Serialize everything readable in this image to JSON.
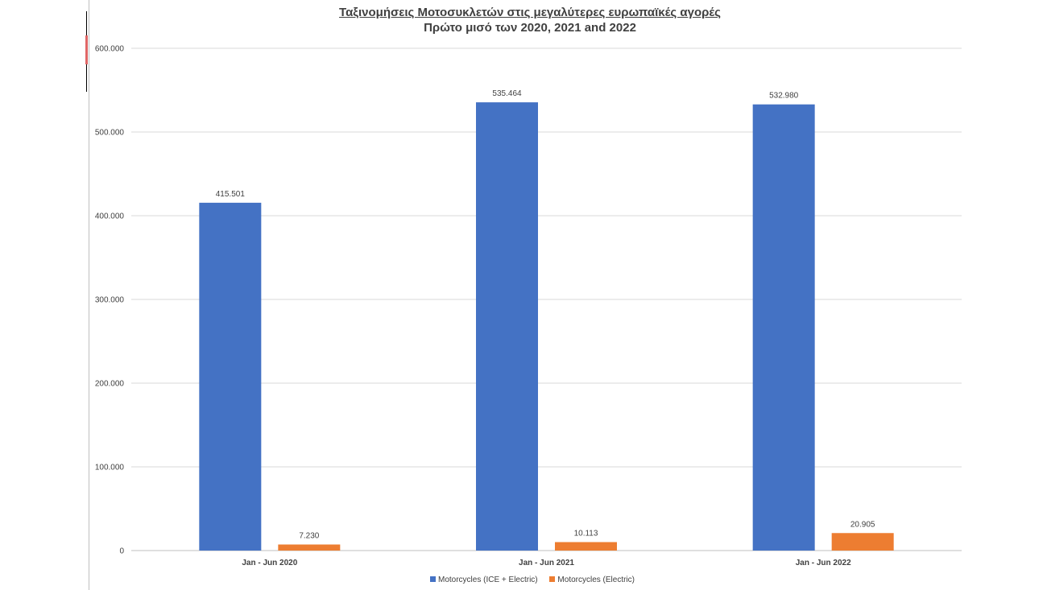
{
  "chart_data": {
    "type": "bar",
    "title": "Ταξινομήσεις Μοτοσυκλετών στις μεγαλύτερες ευρωπαϊκές αγορές",
    "subtitle": "Πρώτο μισό των 2020, 2021 and 2022",
    "categories": [
      "Jan - Jun 2020",
      "Jan - Jun 2021",
      "Jan - Jun 2022"
    ],
    "series": [
      {
        "name": "Motorcycles (ICE + Electric)",
        "values": [
          415501,
          535464,
          532980
        ],
        "labels": [
          "415.501",
          "535.464",
          "532.980"
        ],
        "color": "#4472c4"
      },
      {
        "name": "Motorcycles (Electric)",
        "values": [
          7230,
          10113,
          20905
        ],
        "labels": [
          "7.230",
          "10.113",
          "20.905"
        ],
        "color": "#ed7d31"
      }
    ],
    "ylim": [
      0,
      600000
    ],
    "yticks": [
      0,
      100000,
      200000,
      300000,
      400000,
      500000,
      600000
    ],
    "ytick_labels": [
      "0",
      "100.000",
      "200.000",
      "300.000",
      "400.000",
      "500.000",
      "600.000"
    ],
    "grid": true,
    "legend_position": "bottom"
  }
}
